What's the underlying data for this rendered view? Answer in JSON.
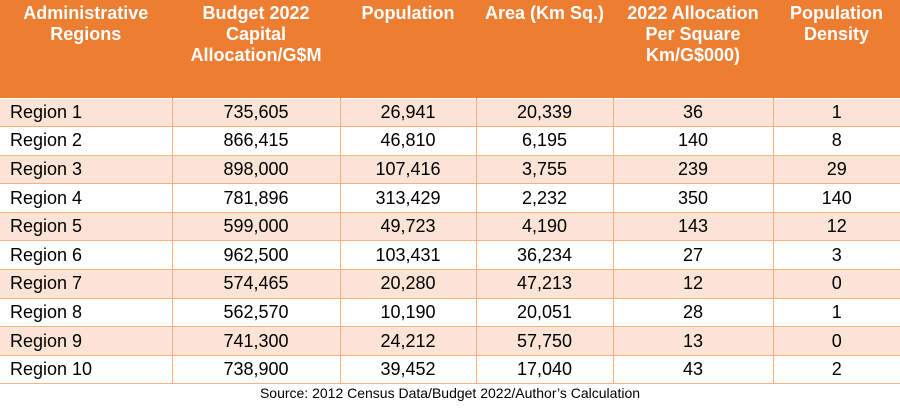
{
  "table": {
    "headers": [
      "Administrative Regions",
      "Budget 2022 Capital Allocation/G$M",
      "Population",
      "Area (Km Sq.)",
      "2022 Allocation Per Square Km/G$000)",
      "Population Density"
    ],
    "rows": [
      [
        "Region 1",
        "735,605",
        "26,941",
        "20,339",
        "36",
        "1"
      ],
      [
        "Region 2",
        "866,415",
        "46,810",
        "6,195",
        "140",
        "8"
      ],
      [
        "Region 3",
        "898,000",
        "107,416",
        "3,755",
        "239",
        "29"
      ],
      [
        "Region 4",
        "781,896",
        "313,429",
        "2,232",
        "350",
        "140"
      ],
      [
        "Region 5",
        "599,000",
        "49,723",
        "4,190",
        "143",
        "12"
      ],
      [
        "Region 6",
        "962,500",
        "103,431",
        "36,234",
        "27",
        "3"
      ],
      [
        "Region 7",
        "574,465",
        "20,280",
        "47,213",
        "12",
        "0"
      ],
      [
        "Region 8",
        "562,570",
        "10,190",
        "20,051",
        "28",
        "1"
      ],
      [
        "Region 9",
        "741,300",
        "24,212",
        "57,750",
        "13",
        "0"
      ],
      [
        "Region 10",
        "738,900",
        "39,452",
        "17,040",
        "43",
        "2"
      ]
    ]
  },
  "source": "Source: 2012 Census Data/Budget 2022/Author’s Calculation",
  "colors": {
    "header_bg": "#ed7d31",
    "band_bg": "#fbe4d5",
    "border": "#f4b183"
  }
}
